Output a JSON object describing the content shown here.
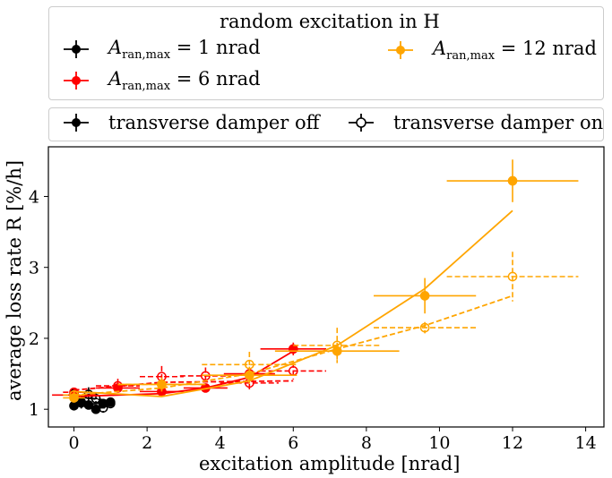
{
  "chart_data": {
    "type": "line",
    "xlabel": "excitation amplitude [nrad]",
    "ylabel": "average loss rate R [%/h]",
    "xlim": [
      -0.7,
      14.5
    ],
    "ylim": [
      0.75,
      4.7
    ],
    "xticks": [
      0,
      2,
      4,
      6,
      8,
      10,
      12,
      14
    ],
    "yticks": [
      1,
      2,
      3,
      4
    ],
    "xtick_labels": [
      "0",
      "2",
      "4",
      "6",
      "8",
      "10",
      "12",
      "14"
    ],
    "ytick_labels": [
      "1",
      "2",
      "3",
      "4"
    ],
    "legend_top": {
      "title": "random excitation in H",
      "entries": [
        {
          "prefix": "A",
          "sub": "ran,max",
          "suffix": " = 1 nrad",
          "color": "#000000"
        },
        {
          "prefix": "A",
          "sub": "ran,max",
          "suffix": " = 6 nrad",
          "color": "#ff0000"
        },
        {
          "prefix": "A",
          "sub": "ran,max",
          "suffix": " = 12 nrad",
          "color": "#ffa500"
        }
      ]
    },
    "legend_bottom": {
      "entries": [
        {
          "label": "transverse damper off",
          "filled": true
        },
        {
          "label": "transverse damper on",
          "filled": false
        }
      ]
    },
    "series": [
      {
        "color": "#000000",
        "damper": "off",
        "filled": true,
        "x": [
          0.0,
          0.2,
          0.4,
          0.6,
          0.8,
          1.0
        ],
        "y": [
          1.05,
          1.09,
          1.06,
          1.0,
          1.08,
          1.1
        ],
        "xerr": [
          0.1,
          0.1,
          0.1,
          0.1,
          0.1,
          0.1
        ],
        "yerr": [
          0.06,
          0.06,
          0.05,
          0.05,
          0.05,
          0.05
        ],
        "fit": [
          [
            0.0,
            1.05
          ],
          [
            1.0,
            1.1
          ]
        ]
      },
      {
        "color": "#000000",
        "damper": "on",
        "filled": false,
        "x": [
          0.0,
          0.2,
          0.4,
          0.6,
          0.8,
          1.0
        ],
        "y": [
          1.22,
          1.1,
          1.21,
          1.15,
          1.02,
          1.08
        ],
        "xerr": [
          0.1,
          0.1,
          0.1,
          0.1,
          0.1,
          0.1
        ],
        "yerr": [
          0.07,
          0.09,
          0.1,
          0.08,
          0.07,
          0.06
        ],
        "fit": [
          [
            0.0,
            1.18
          ],
          [
            1.0,
            1.12
          ]
        ]
      },
      {
        "color": "#ff0000",
        "damper": "off",
        "filled": true,
        "x": [
          0.0,
          1.2,
          2.4,
          3.6,
          4.8,
          6.0
        ],
        "y": [
          1.2,
          1.3,
          1.25,
          1.3,
          1.5,
          1.85
        ],
        "xerr": [
          0.6,
          0.6,
          0.6,
          0.6,
          0.7,
          0.9
        ],
        "yerr": [
          0.06,
          0.06,
          0.06,
          0.05,
          0.05,
          0.09
        ],
        "fit": [
          [
            0.0,
            1.18
          ],
          [
            2.4,
            1.22
          ],
          [
            3.6,
            1.3
          ],
          [
            4.8,
            1.45
          ],
          [
            6.0,
            1.82
          ]
        ]
      },
      {
        "color": "#ff0000",
        "damper": "on",
        "filled": false,
        "x": [
          0.0,
          1.2,
          2.4,
          3.6,
          4.8,
          6.0
        ],
        "y": [
          1.24,
          1.33,
          1.46,
          1.47,
          1.37,
          1.54
        ],
        "xerr": [
          0.3,
          0.6,
          0.6,
          0.7,
          0.8,
          0.9
        ],
        "yerr": [
          0.05,
          0.1,
          0.15,
          0.12,
          0.1,
          0.12
        ],
        "fit": [
          [
            0.0,
            1.27
          ],
          [
            2.4,
            1.38
          ],
          [
            6.0,
            1.4
          ]
        ]
      },
      {
        "color": "#ffa500",
        "damper": "off",
        "filled": true,
        "x": [
          0.0,
          2.4,
          4.8,
          7.2,
          9.6,
          12.0
        ],
        "y": [
          1.16,
          1.35,
          1.48,
          1.82,
          2.6,
          4.22
        ],
        "xerr": [
          0.3,
          1.2,
          1.3,
          1.7,
          1.4,
          1.8
        ],
        "yerr": [
          0.06,
          0.1,
          0.12,
          0.12,
          0.25,
          0.3
        ],
        "fit": [
          [
            0.0,
            1.25
          ],
          [
            2.4,
            1.18
          ],
          [
            4.8,
            1.4
          ],
          [
            7.2,
            1.9
          ],
          [
            9.6,
            2.7
          ],
          [
            12.0,
            3.8
          ]
        ]
      },
      {
        "color": "#ffa500",
        "damper": "on",
        "filled": false,
        "x": [
          0.0,
          2.4,
          4.8,
          7.2,
          9.6,
          12.0
        ],
        "y": [
          1.2,
          1.35,
          1.63,
          1.9,
          2.15,
          2.87
        ],
        "xerr": [
          0.3,
          1.2,
          1.3,
          1.2,
          1.4,
          1.8
        ],
        "yerr": [
          0.05,
          0.08,
          0.18,
          0.25,
          0.08,
          0.35
        ],
        "fit": [
          [
            0.0,
            1.2
          ],
          [
            2.4,
            1.3
          ],
          [
            4.8,
            1.5
          ],
          [
            7.2,
            1.85
          ],
          [
            9.6,
            2.18
          ],
          [
            12.0,
            2.6
          ]
        ]
      }
    ]
  }
}
